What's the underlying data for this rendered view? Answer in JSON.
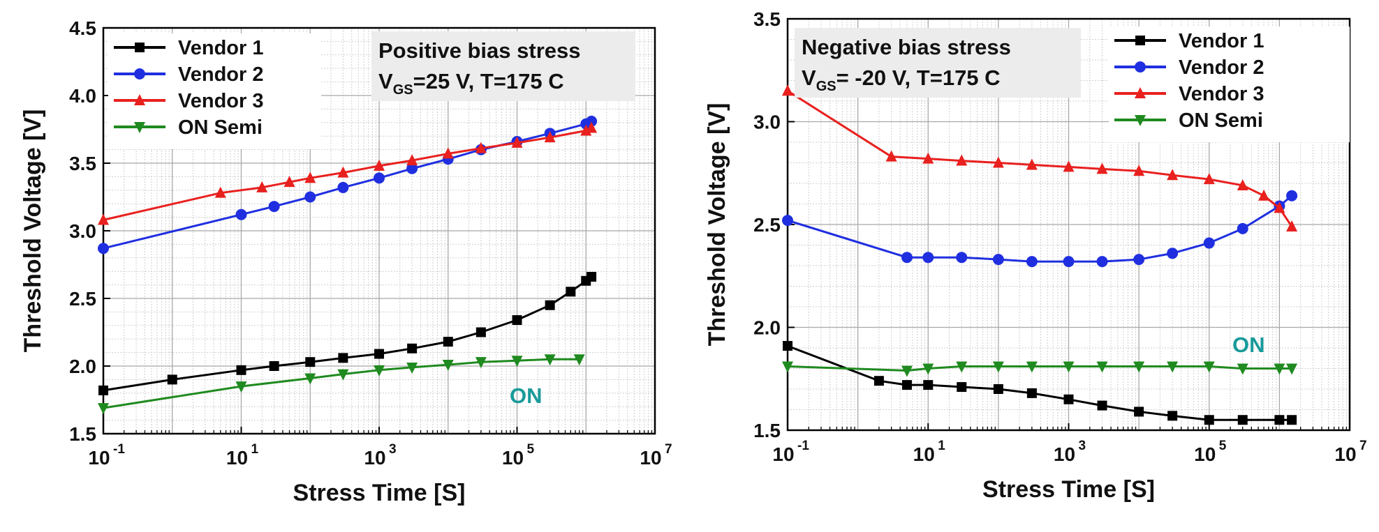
{
  "chart_data": [
    {
      "type": "line",
      "xlabel": "Stress Time [S]",
      "ylabel": "Threshold Voltage [V]",
      "xscale": "log",
      "xlim": [
        0.1,
        10000000
      ],
      "ylim": [
        1.5,
        4.5
      ],
      "x_ticks": [
        "10",
        "10",
        "10",
        "10",
        "10"
      ],
      "x_tick_exponents": [
        "-1",
        "1",
        "3",
        "5",
        "7"
      ],
      "y_ticks": [
        "1.5",
        "2.0",
        "2.5",
        "3.0",
        "3.5",
        "4.0",
        "4.5"
      ],
      "grid": true,
      "legend_position": "top-left",
      "annotation_lines": [
        {
          "main": "Positive bias stress",
          "exp": ""
        },
        {
          "main": "V",
          "sub": "GS",
          "rest": "=25 V, T=175 C"
        }
      ],
      "label_on": "ON",
      "series": [
        {
          "name": "Vendor 1",
          "color": "#000000",
          "marker": "square",
          "x": [
            0.1,
            1,
            10,
            30,
            100,
            300,
            1000,
            3000,
            10000,
            30000,
            100000,
            300000,
            600000,
            1000000,
            1200000
          ],
          "y": [
            1.82,
            1.9,
            1.97,
            2.0,
            2.03,
            2.06,
            2.09,
            2.13,
            2.18,
            2.25,
            2.34,
            2.45,
            2.55,
            2.63,
            2.66
          ]
        },
        {
          "name": "Vendor 2",
          "color": "#1f2fe0",
          "marker": "circle",
          "x": [
            0.1,
            10,
            30,
            100,
            300,
            1000,
            3000,
            10000,
            30000,
            100000,
            300000,
            1000000,
            1200000
          ],
          "y": [
            2.87,
            3.12,
            3.18,
            3.25,
            3.32,
            3.39,
            3.46,
            3.53,
            3.6,
            3.66,
            3.72,
            3.79,
            3.81
          ]
        },
        {
          "name": "Vendor 3",
          "color": "#e8201e",
          "marker": "triangle-up",
          "x": [
            0.1,
            5,
            20,
            50,
            100,
            300,
            1000,
            3000,
            10000,
            30000,
            100000,
            300000,
            1000000,
            1200000
          ],
          "y": [
            3.08,
            3.28,
            3.32,
            3.36,
            3.39,
            3.43,
            3.48,
            3.52,
            3.57,
            3.61,
            3.65,
            3.69,
            3.74,
            3.76
          ]
        },
        {
          "name": "ON Semi",
          "color": "#1f8a1f",
          "marker": "triangle-down",
          "x": [
            0.1,
            10,
            100,
            300,
            1000,
            3000,
            10000,
            30000,
            100000,
            300000,
            800000
          ],
          "y": [
            1.69,
            1.85,
            1.91,
            1.94,
            1.97,
            1.99,
            2.01,
            2.03,
            2.04,
            2.05,
            2.05
          ]
        }
      ]
    },
    {
      "type": "line",
      "xlabel": "Stress Time [S]",
      "ylabel": "Threshold Voltage [V]",
      "xscale": "log",
      "xlim": [
        0.1,
        10000000
      ],
      "ylim": [
        1.5,
        3.5
      ],
      "x_ticks": [
        "10",
        "10",
        "10",
        "10",
        "10"
      ],
      "x_tick_exponents": [
        "-1",
        "1",
        "3",
        "5",
        "7"
      ],
      "y_ticks": [
        "1.5",
        "2.0",
        "2.5",
        "3.0",
        "3.5"
      ],
      "grid": true,
      "legend_position": "top-right",
      "annotation_lines": [
        {
          "main": "Negative bias stress",
          "exp": ""
        },
        {
          "main": "V",
          "sub": "GS",
          "rest": "= -20 V, T=175 C"
        }
      ],
      "label_on": "ON",
      "series": [
        {
          "name": "Vendor 1",
          "color": "#000000",
          "marker": "square",
          "x": [
            0.1,
            2,
            5,
            10,
            30,
            100,
            300,
            1000,
            3000,
            10000,
            30000,
            100000,
            300000,
            1000000,
            1500000
          ],
          "y": [
            1.91,
            1.74,
            1.72,
            1.72,
            1.71,
            1.7,
            1.68,
            1.65,
            1.62,
            1.59,
            1.57,
            1.55,
            1.55,
            1.55,
            1.55
          ]
        },
        {
          "name": "Vendor 2",
          "color": "#1f2fe0",
          "marker": "circle",
          "x": [
            0.1,
            5,
            10,
            30,
            100,
            300,
            1000,
            3000,
            10000,
            30000,
            100000,
            300000,
            1000000,
            1500000
          ],
          "y": [
            2.52,
            2.34,
            2.34,
            2.34,
            2.33,
            2.32,
            2.32,
            2.32,
            2.33,
            2.36,
            2.41,
            2.48,
            2.59,
            2.64
          ]
        },
        {
          "name": "Vendor 3",
          "color": "#e8201e",
          "marker": "triangle-up",
          "x": [
            0.1,
            3,
            10,
            30,
            100,
            300,
            1000,
            3000,
            10000,
            30000,
            100000,
            300000,
            600000,
            1000000,
            1500000
          ],
          "y": [
            3.15,
            2.83,
            2.82,
            2.81,
            2.8,
            2.79,
            2.78,
            2.77,
            2.76,
            2.74,
            2.72,
            2.69,
            2.64,
            2.58,
            2.49
          ]
        },
        {
          "name": "ON Semi",
          "color": "#1f8a1f",
          "marker": "triangle-down",
          "x": [
            0.1,
            5,
            10,
            30,
            100,
            300,
            1000,
            3000,
            10000,
            30000,
            100000,
            300000,
            1000000,
            1500000
          ],
          "y": [
            1.81,
            1.79,
            1.8,
            1.81,
            1.81,
            1.81,
            1.81,
            1.81,
            1.81,
            1.81,
            1.81,
            1.8,
            1.8,
            1.8
          ]
        }
      ]
    }
  ]
}
